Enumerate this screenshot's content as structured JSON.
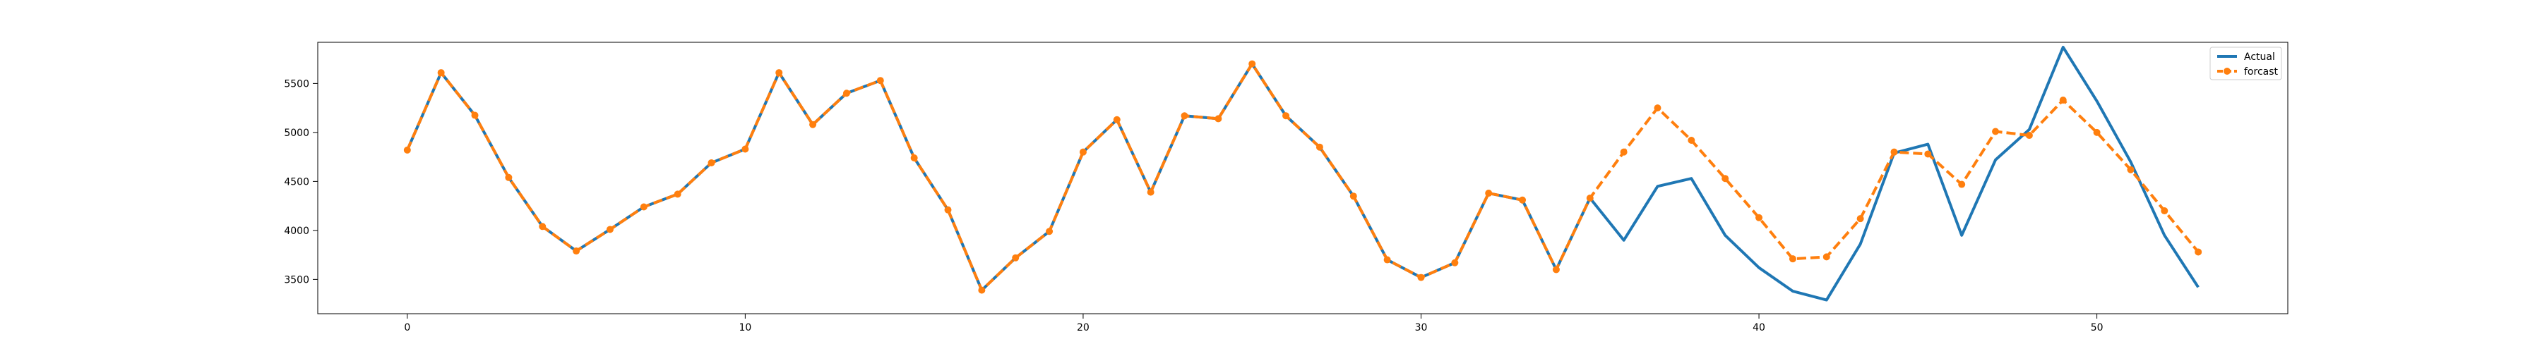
{
  "chart_data": {
    "type": "line",
    "title": "",
    "xlabel": "",
    "ylabel": "",
    "xlim": [
      -2.65,
      55.65
    ],
    "ylim": [
      3150,
      5920
    ],
    "grid": false,
    "legend_position": "top-right",
    "x_ticks": [
      0,
      10,
      20,
      30,
      40,
      50
    ],
    "y_ticks": [
      3500,
      4000,
      4500,
      5000,
      5500
    ],
    "series": [
      {
        "name": "Actual",
        "color": "#1f77b4",
        "style": "solid",
        "marker": "none",
        "x": [
          0,
          1,
          2,
          3,
          4,
          5,
          6,
          7,
          8,
          9,
          10,
          11,
          12,
          13,
          14,
          15,
          16,
          17,
          18,
          19,
          20,
          21,
          22,
          23,
          24,
          25,
          26,
          27,
          28,
          29,
          30,
          31,
          32,
          33,
          34,
          35,
          36,
          37,
          38,
          39,
          40,
          41,
          42,
          43,
          44,
          45,
          46,
          47,
          48,
          49,
          50,
          51,
          52,
          53
        ],
        "values": [
          4820,
          5610,
          5175,
          4540,
          4040,
          3790,
          4010,
          4240,
          4370,
          4690,
          4830,
          5610,
          5080,
          5400,
          5530,
          4740,
          4210,
          3390,
          3720,
          3990,
          4800,
          5130,
          4390,
          5170,
          5140,
          5700,
          5170,
          4850,
          4350,
          3700,
          3520,
          3670,
          4380,
          4310,
          3600,
          4330,
          3900,
          4450,
          4530,
          3950,
          3620,
          3380,
          3290,
          3860,
          4790,
          4880,
          3950,
          4720,
          5030,
          5870,
          5320,
          4700,
          3950,
          3420
        ]
      },
      {
        "name": "forcast",
        "color": "#ff7f0e",
        "style": "dashed",
        "marker": "circle",
        "x": [
          0,
          1,
          2,
          3,
          4,
          5,
          6,
          7,
          8,
          9,
          10,
          11,
          12,
          13,
          14,
          15,
          16,
          17,
          18,
          19,
          20,
          21,
          22,
          23,
          24,
          25,
          26,
          27,
          28,
          29,
          30,
          31,
          32,
          33,
          34,
          35,
          36,
          37,
          38,
          39,
          40,
          41,
          42,
          43,
          44,
          45,
          46,
          47,
          48,
          49,
          50,
          51,
          52,
          53
        ],
        "values": [
          4820,
          5610,
          5175,
          4540,
          4040,
          3790,
          4010,
          4240,
          4370,
          4690,
          4830,
          5610,
          5080,
          5400,
          5530,
          4740,
          4210,
          3390,
          3720,
          3990,
          4800,
          5130,
          4390,
          5170,
          5140,
          5700,
          5170,
          4850,
          4350,
          3700,
          3520,
          3670,
          4380,
          4310,
          3600,
          4330,
          4800,
          5250,
          4920,
          4530,
          4130,
          3710,
          3730,
          4120,
          4800,
          4780,
          4470,
          5010,
          4970,
          5330,
          5000,
          4620,
          4200,
          3780
        ]
      }
    ]
  }
}
